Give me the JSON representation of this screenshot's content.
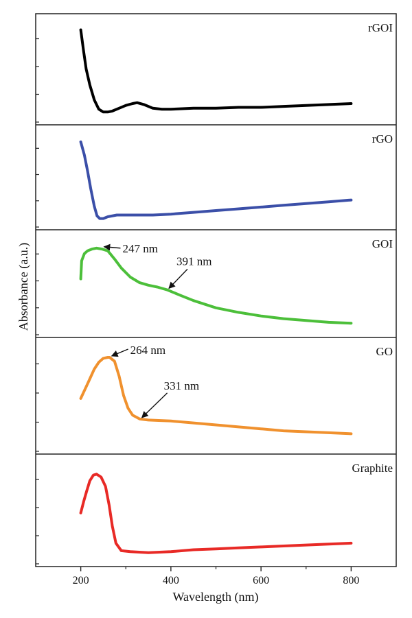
{
  "chart_data": {
    "type": "line",
    "xlabel": "Wavelength (nm)",
    "ylabel": "Absorbance (a.u.)",
    "xlim": [
      100,
      900
    ],
    "x_ticks": [
      200,
      400,
      600,
      800
    ],
    "grid": false,
    "panels": [
      {
        "name": "rGOI",
        "color": "#000000",
        "ylim": [
          0,
          1
        ],
        "points": [
          [
            200,
            0.97
          ],
          [
            206,
            0.75
          ],
          [
            212,
            0.55
          ],
          [
            220,
            0.38
          ],
          [
            230,
            0.22
          ],
          [
            240,
            0.12
          ],
          [
            250,
            0.09
          ],
          [
            260,
            0.09
          ],
          [
            270,
            0.1
          ],
          [
            285,
            0.13
          ],
          [
            300,
            0.16
          ],
          [
            315,
            0.18
          ],
          [
            325,
            0.19
          ],
          [
            340,
            0.17
          ],
          [
            360,
            0.13
          ],
          [
            380,
            0.12
          ],
          [
            400,
            0.12
          ],
          [
            450,
            0.13
          ],
          [
            500,
            0.13
          ],
          [
            550,
            0.14
          ],
          [
            600,
            0.14
          ],
          [
            650,
            0.15
          ],
          [
            700,
            0.16
          ],
          [
            750,
            0.17
          ],
          [
            800,
            0.18
          ]
        ],
        "annotations": []
      },
      {
        "name": "rGO",
        "color": "#3b4fa8",
        "ylim": [
          0,
          1
        ],
        "points": [
          [
            200,
            0.95
          ],
          [
            208,
            0.8
          ],
          [
            215,
            0.62
          ],
          [
            222,
            0.42
          ],
          [
            230,
            0.22
          ],
          [
            236,
            0.11
          ],
          [
            242,
            0.08
          ],
          [
            250,
            0.08
          ],
          [
            260,
            0.1
          ],
          [
            280,
            0.12
          ],
          [
            300,
            0.12
          ],
          [
            330,
            0.12
          ],
          [
            360,
            0.12
          ],
          [
            400,
            0.13
          ],
          [
            450,
            0.15
          ],
          [
            500,
            0.17
          ],
          [
            550,
            0.19
          ],
          [
            600,
            0.21
          ],
          [
            650,
            0.23
          ],
          [
            700,
            0.25
          ],
          [
            750,
            0.27
          ],
          [
            800,
            0.29
          ]
        ],
        "annotations": []
      },
      {
        "name": "GOI",
        "color": "#4cbf3a",
        "ylim": [
          0,
          1
        ],
        "points": [
          [
            200,
            0.6
          ],
          [
            202,
            0.8
          ],
          [
            208,
            0.88
          ],
          [
            215,
            0.91
          ],
          [
            225,
            0.93
          ],
          [
            235,
            0.94
          ],
          [
            247,
            0.93
          ],
          [
            260,
            0.91
          ],
          [
            275,
            0.82
          ],
          [
            290,
            0.72
          ],
          [
            310,
            0.62
          ],
          [
            330,
            0.56
          ],
          [
            350,
            0.53
          ],
          [
            370,
            0.51
          ],
          [
            391,
            0.48
          ],
          [
            420,
            0.42
          ],
          [
            450,
            0.36
          ],
          [
            500,
            0.28
          ],
          [
            550,
            0.23
          ],
          [
            600,
            0.19
          ],
          [
            650,
            0.16
          ],
          [
            700,
            0.14
          ],
          [
            750,
            0.12
          ],
          [
            800,
            0.11
          ]
        ],
        "annotations": [
          {
            "text": "247 nm",
            "x": 247,
            "y": 0.94
          },
          {
            "text": "391 nm",
            "x": 391,
            "y": 0.48
          }
        ]
      },
      {
        "name": "GO",
        "color": "#f0912e",
        "ylim": [
          0,
          1
        ],
        "points": [
          [
            200,
            0.52
          ],
          [
            210,
            0.62
          ],
          [
            220,
            0.72
          ],
          [
            230,
            0.82
          ],
          [
            240,
            0.89
          ],
          [
            250,
            0.93
          ],
          [
            260,
            0.94
          ],
          [
            264,
            0.94
          ],
          [
            275,
            0.9
          ],
          [
            285,
            0.75
          ],
          [
            295,
            0.55
          ],
          [
            305,
            0.42
          ],
          [
            315,
            0.35
          ],
          [
            331,
            0.31
          ],
          [
            350,
            0.3
          ],
          [
            400,
            0.29
          ],
          [
            450,
            0.27
          ],
          [
            500,
            0.25
          ],
          [
            550,
            0.23
          ],
          [
            600,
            0.21
          ],
          [
            650,
            0.19
          ],
          [
            700,
            0.18
          ],
          [
            750,
            0.17
          ],
          [
            800,
            0.16
          ]
        ],
        "annotations": [
          {
            "text": "264 nm",
            "x": 264,
            "y": 0.94
          },
          {
            "text": "331 nm",
            "x": 331,
            "y": 0.31
          }
        ]
      },
      {
        "name": "Graphite",
        "color": "#e82a26",
        "ylim": [
          0,
          1
        ],
        "points": [
          [
            200,
            0.52
          ],
          [
            207,
            0.65
          ],
          [
            213,
            0.75
          ],
          [
            220,
            0.86
          ],
          [
            228,
            0.92
          ],
          [
            235,
            0.93
          ],
          [
            245,
            0.9
          ],
          [
            255,
            0.8
          ],
          [
            263,
            0.6
          ],
          [
            270,
            0.38
          ],
          [
            278,
            0.2
          ],
          [
            290,
            0.12
          ],
          [
            310,
            0.11
          ],
          [
            350,
            0.1
          ],
          [
            400,
            0.11
          ],
          [
            450,
            0.13
          ],
          [
            500,
            0.14
          ],
          [
            550,
            0.15
          ],
          [
            600,
            0.16
          ],
          [
            650,
            0.17
          ],
          [
            700,
            0.18
          ],
          [
            750,
            0.19
          ],
          [
            800,
            0.2
          ]
        ],
        "annotations": []
      }
    ]
  }
}
